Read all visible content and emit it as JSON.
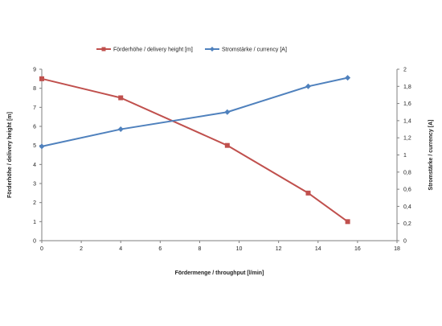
{
  "chart_data": {
    "type": "line",
    "title": "",
    "xlabel": "Fördermenge / throughput [l/min]",
    "ylabel": "Förderhöhe / delivery height [m]",
    "y2label": "Stromstärke / currency [A]",
    "xlim": [
      0,
      18
    ],
    "ylim": [
      0,
      9
    ],
    "y2lim": [
      0,
      2
    ],
    "x_ticks": [
      "0",
      "2",
      "4",
      "6",
      "8",
      "10",
      "12",
      "14",
      "16",
      "18"
    ],
    "y_ticks": [
      "0",
      "1",
      "2",
      "3",
      "4",
      "5",
      "6",
      "7",
      "8",
      "9"
    ],
    "y2_ticks": [
      "0",
      "0,2",
      "0,4",
      "0,6",
      "0,8",
      "1",
      "1,2",
      "1,4",
      "1,6",
      "1,8",
      "2"
    ],
    "grid": false,
    "legend_position": "top",
    "series": [
      {
        "name": "Förderhöhe / delivery height  [m]",
        "axis": "left",
        "color": "#c0504d",
        "marker": "square",
        "points": [
          [
            0,
            8.5
          ],
          [
            4,
            7.5
          ],
          [
            9.4,
            5.0
          ],
          [
            13.5,
            2.5
          ],
          [
            15.5,
            1.0
          ]
        ]
      },
      {
        "name": "Stromstärke / currency [A]",
        "axis": "right",
        "color": "#4f81bd",
        "marker": "diamond",
        "points": [
          [
            0,
            1.1
          ],
          [
            4,
            1.3
          ],
          [
            9.4,
            1.5
          ],
          [
            13.5,
            1.8
          ],
          [
            15.5,
            1.9
          ]
        ]
      }
    ]
  }
}
